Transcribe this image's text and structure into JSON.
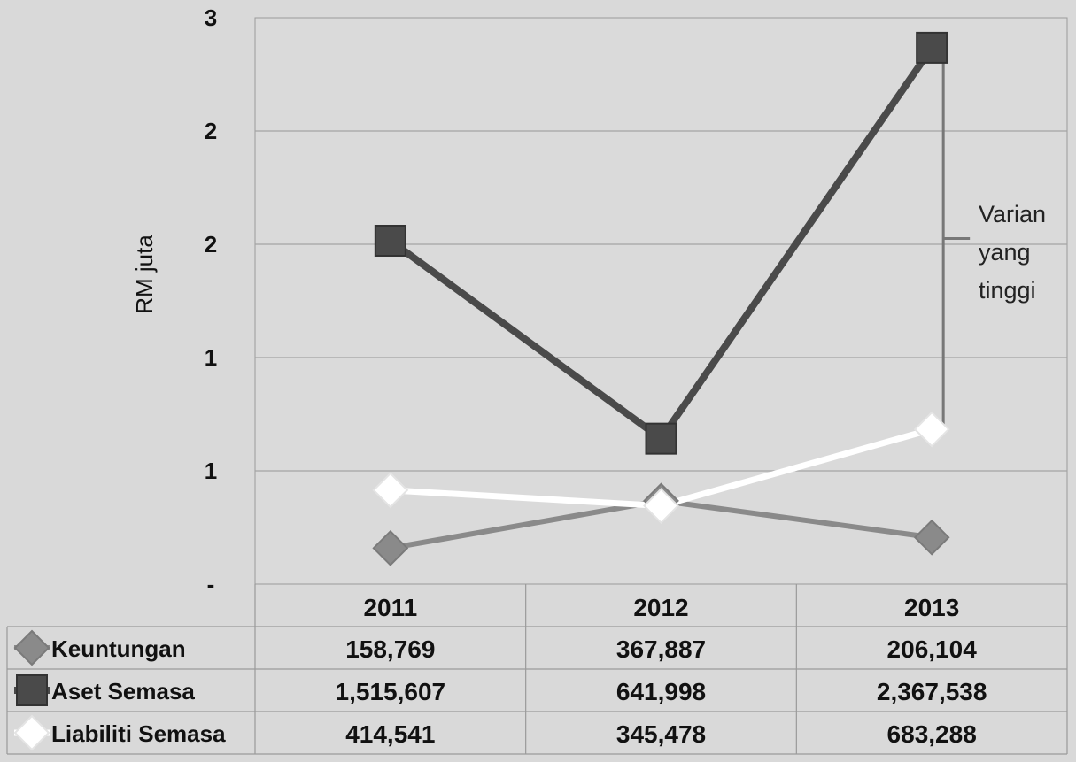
{
  "chart_data": {
    "type": "line",
    "ylabel": "RM juta",
    "y_tick_labels": [
      "-",
      "1",
      "1",
      "2",
      "2",
      "3"
    ],
    "ylim": [
      0,
      2.5
    ],
    "grid": true,
    "categories": [
      "2011",
      "2012",
      "2013"
    ],
    "unit": "RM",
    "series": [
      {
        "name": "Keuntungan",
        "values": [
          158769,
          367887,
          206104
        ],
        "labels": [
          "158,769",
          "367,887",
          "206,104"
        ],
        "marker": "diamond",
        "color": "#8a8a8a"
      },
      {
        "name": "Aset Semasa",
        "values": [
          1515607,
          641998,
          2367538
        ],
        "labels": [
          "1,515,607",
          "641,998",
          "2,367,538"
        ],
        "marker": "square",
        "color": "#4a4a4a"
      },
      {
        "name": "Liabiliti Semasa",
        "values": [
          414541,
          345478,
          683288
        ],
        "labels": [
          "414,541",
          "345,478",
          "683,288"
        ],
        "marker": "diamond",
        "color": "#ffffff"
      }
    ],
    "annotation": {
      "lines": [
        "Varian",
        "yang",
        "tinggi"
      ],
      "between": [
        2367538,
        683288
      ],
      "category": "2013"
    },
    "data_table": true
  }
}
